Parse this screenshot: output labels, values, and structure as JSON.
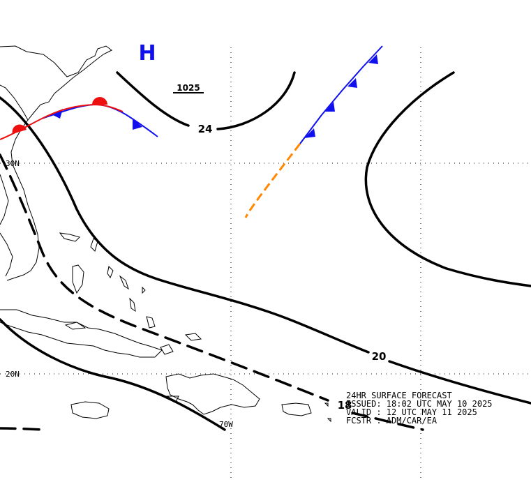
{
  "colors": {
    "background": "#ffffff",
    "isobar": "#000000",
    "cold_front": "#1010ee",
    "warm_front": "#ee1010",
    "trough": "#ff8800",
    "coastline": "#000000",
    "grid": "#000000"
  },
  "map": {
    "lat_labels": [
      "30N",
      "20N"
    ],
    "lon_labels": [
      "70W"
    ],
    "high_pressure": {
      "symbol": "H",
      "value": "1025"
    },
    "isobar_labels": {
      "north": "24",
      "central": "20",
      "south": "18"
    }
  },
  "forecast_info": {
    "line1": "24HR SURFACE FORECAST",
    "line2": "ISSUED: 18:02 UTC MAY 10 2025",
    "line3": "VALID : 12 UTC MAY 11 2025",
    "line4": "FCSTR : ADM/CAR/EA"
  }
}
